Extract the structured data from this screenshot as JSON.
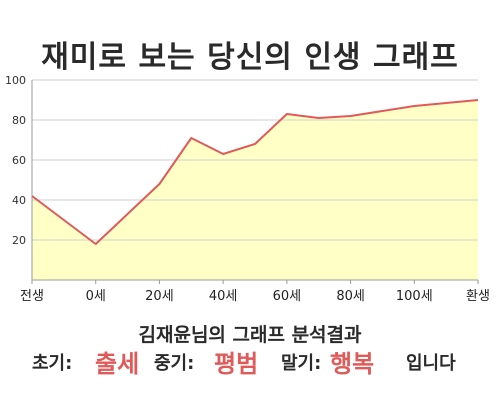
{
  "title": "재미로 보는 당신의 인생 그래프",
  "chart_data": {
    "type": "area",
    "x_labels": [
      "전생",
      "0세",
      "20세",
      "40세",
      "60세",
      "80세",
      "100세",
      "환생"
    ],
    "x": [
      -20,
      0,
      20,
      40,
      60,
      80,
      100,
      120
    ],
    "points": [
      {
        "x": -20,
        "y": 42
      },
      {
        "x": 0,
        "y": 18
      },
      {
        "x": 20,
        "y": 48
      },
      {
        "x": 30,
        "y": 71
      },
      {
        "x": 40,
        "y": 63
      },
      {
        "x": 50,
        "y": 68
      },
      {
        "x": 60,
        "y": 83
      },
      {
        "x": 70,
        "y": 81
      },
      {
        "x": 80,
        "y": 82
      },
      {
        "x": 100,
        "y": 87
      },
      {
        "x": 120,
        "y": 90
      }
    ],
    "yticks": [
      20,
      40,
      60,
      80,
      100
    ],
    "ylim": [
      0,
      100
    ],
    "xlim": [
      -20,
      120
    ],
    "grid": "horizontal",
    "line_color": "#e05a5a",
    "fill_color": "#ffffc6",
    "grid_color": "#cfcfcf"
  },
  "subtitle": "김재윤님의 그래프 분석결과",
  "result": {
    "early_label": "초기:",
    "early_value": "출세",
    "middle_label": "중기:",
    "middle_value": "평범",
    "late_label": "말기:",
    "late_value": "행복",
    "ending": "입니다"
  }
}
